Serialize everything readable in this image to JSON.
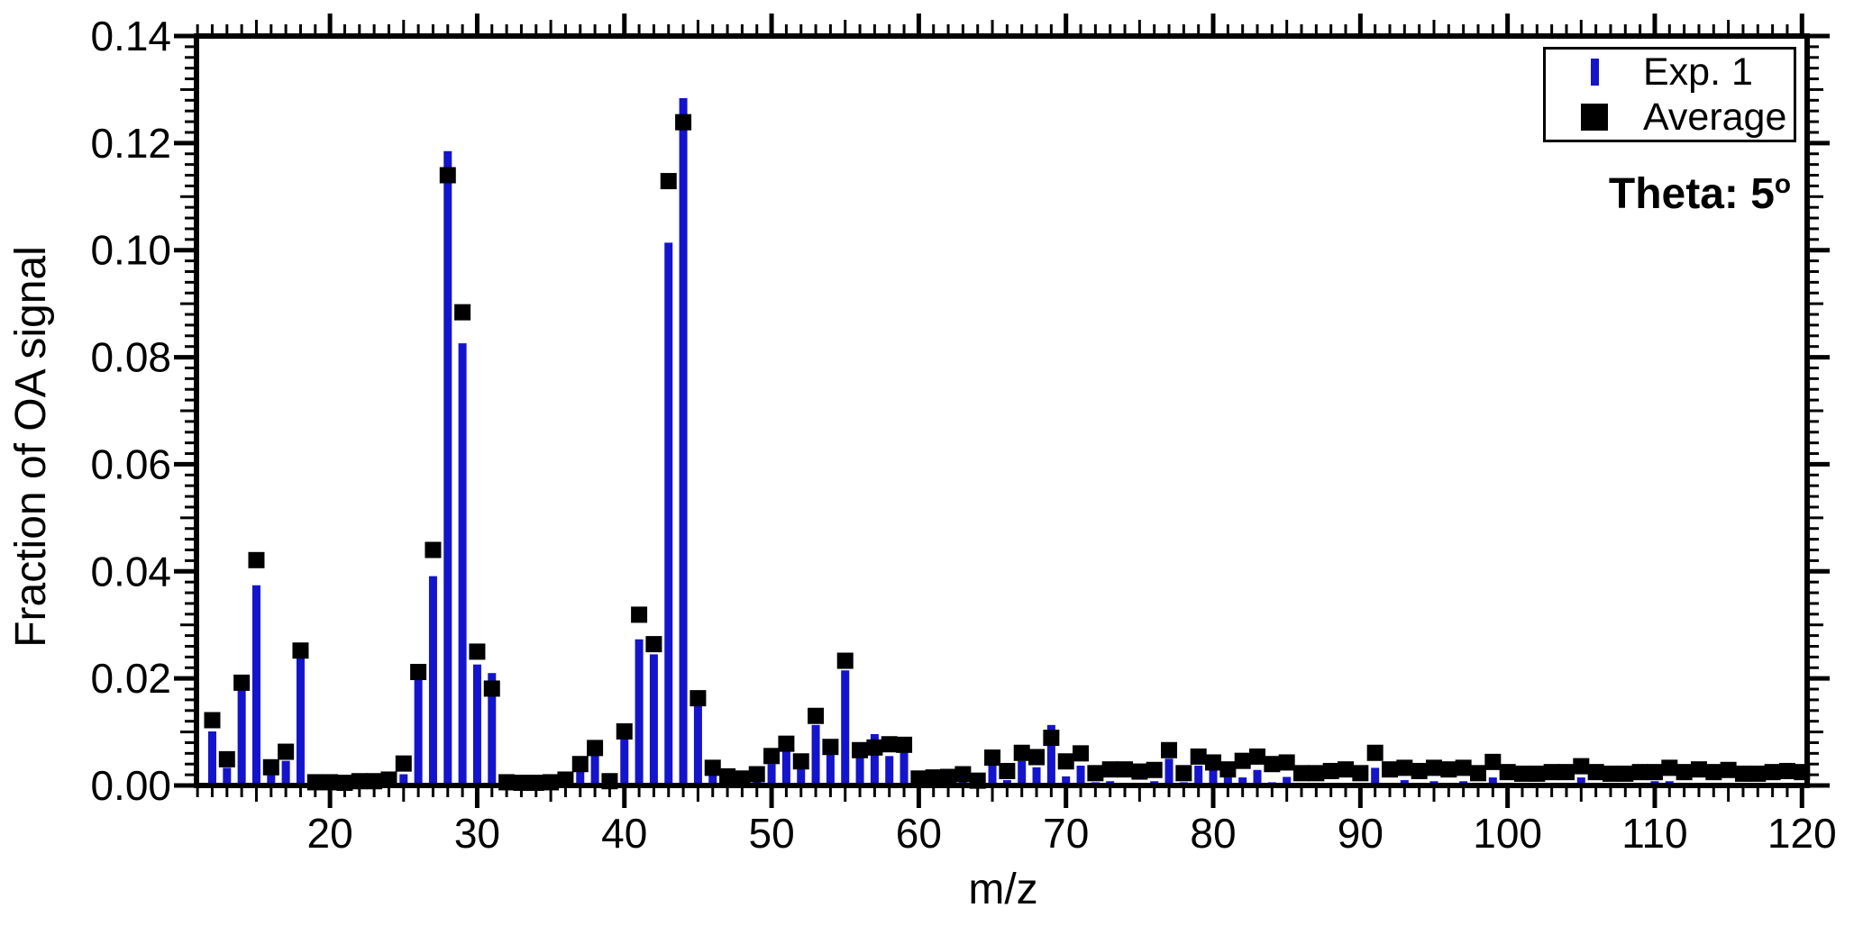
{
  "page": {
    "background": "#ffffff"
  },
  "chart_data": {
    "type": "bar",
    "title": "",
    "xlabel": "m/z",
    "ylabel": "Fraction of OA signal",
    "xlim": [
      10.93,
      120.35
    ],
    "ylim": [
      0,
      0.14
    ],
    "grid": false,
    "legend": {
      "position": "top-right",
      "entries": [
        {
          "marker": "blue-vertical-bar-icon",
          "label": "Exp. 1"
        },
        {
          "marker": "black-square-icon",
          "label": "Average"
        }
      ]
    },
    "annotation": {
      "text": "Theta: 5",
      "superscript": "o"
    },
    "colors": {
      "bar": "#1414cd",
      "marker": "#000000",
      "axis": "#000000"
    },
    "x_tick_labels": [
      "20",
      "30",
      "40",
      "50",
      "60",
      "70",
      "80",
      "90",
      "100",
      "110",
      "120"
    ],
    "y_tick_values": [
      0,
      0.02,
      0.04,
      0.06,
      0.08,
      0.1,
      0.12,
      0.14
    ],
    "y_tick_labels": [
      "0.00",
      "0.02",
      "0.04",
      "0.06",
      "0.08",
      "0.10",
      "0.12",
      "0.14"
    ],
    "x_minor_step": 1,
    "y_minor_step": 0.002,
    "x": [
      12,
      13,
      14,
      15,
      16,
      17,
      18,
      19,
      20,
      21,
      22,
      23,
      24,
      25,
      26,
      27,
      28,
      29,
      30,
      31,
      32,
      33,
      34,
      35,
      36,
      37,
      38,
      39,
      40,
      41,
      42,
      43,
      44,
      45,
      46,
      47,
      48,
      49,
      50,
      51,
      52,
      53,
      54,
      55,
      56,
      57,
      58,
      59,
      60,
      61,
      62,
      63,
      64,
      65,
      66,
      67,
      68,
      69,
      70,
      71,
      72,
      73,
      74,
      75,
      76,
      77,
      78,
      79,
      80,
      81,
      82,
      83,
      84,
      85,
      86,
      87,
      88,
      89,
      90,
      91,
      92,
      93,
      94,
      95,
      96,
      97,
      98,
      99,
      100,
      101,
      102,
      103,
      104,
      105,
      106,
      107,
      108,
      109,
      110,
      111,
      112,
      113,
      114,
      115,
      116,
      117,
      118,
      119,
      120
    ],
    "series": [
      {
        "name": "Exp. 1",
        "style": "bar",
        "values": [
          0.0101,
          0.0033,
          0.0179,
          0.0374,
          0.002,
          0.0046,
          0.0238,
          0.0003,
          0.0003,
          0.0003,
          0.0004,
          0.0004,
          0.0005,
          0.0021,
          0.0205,
          0.0391,
          0.1185,
          0.0826,
          0.0226,
          0.021,
          0.0004,
          0.0003,
          0.0003,
          0.0004,
          0.0006,
          0.003,
          0.0064,
          0.0005,
          0.0088,
          0.0273,
          0.0245,
          0.1014,
          0.1284,
          0.0155,
          0.0021,
          0.0006,
          0.0004,
          0.0014,
          0.004,
          0.0065,
          0.0034,
          0.0113,
          0.006,
          0.0215,
          0.0054,
          0.0096,
          0.0055,
          0.0062,
          0.0021,
          0.0004,
          0.0005,
          0.0015,
          0.0004,
          0.0037,
          0.001,
          0.0046,
          0.0034,
          0.0113,
          0.0017,
          0.0037,
          0.0006,
          0.0008,
          0.0005,
          0.0005,
          0.0008,
          0.005,
          0.0006,
          0.0037,
          0.0034,
          0.0015,
          0.0015,
          0.0029,
          0.0006,
          0.0016,
          0.0003,
          0.0003,
          0.0005,
          0.0005,
          0.0003,
          0.0033,
          0.0003,
          0.001,
          0.0005,
          0.0008,
          0.0003,
          0.0008,
          0.0003,
          0.0015,
          0.0005,
          0.0003,
          0.0003,
          0.0004,
          0.0004,
          0.0015,
          0.0004,
          0.0003,
          0.0003,
          0.0004,
          0.0008,
          0.0008,
          0.0003,
          0.0005,
          0.0004,
          0.0004,
          0.0003,
          0.0003,
          0.0004,
          0.0004,
          0.0003
        ]
      },
      {
        "name": "Average",
        "style": "scatter-square",
        "values": [
          0.0122,
          0.0049,
          0.0192,
          0.0421,
          0.0034,
          0.0063,
          0.0252,
          0.0006,
          0.0006,
          0.0005,
          0.0008,
          0.0008,
          0.0011,
          0.0041,
          0.0212,
          0.044,
          0.114,
          0.0884,
          0.025,
          0.0181,
          0.0006,
          0.0005,
          0.0005,
          0.0006,
          0.0011,
          0.004,
          0.007,
          0.0008,
          0.0101,
          0.0319,
          0.0264,
          0.1129,
          0.1239,
          0.0163,
          0.0033,
          0.0017,
          0.0013,
          0.0021,
          0.0055,
          0.0078,
          0.0045,
          0.013,
          0.0072,
          0.0233,
          0.0066,
          0.0071,
          0.0077,
          0.0076,
          0.0013,
          0.0015,
          0.0016,
          0.0021,
          0.0009,
          0.0052,
          0.0027,
          0.0061,
          0.0053,
          0.0089,
          0.0045,
          0.006,
          0.0023,
          0.003,
          0.003,
          0.0026,
          0.0029,
          0.0066,
          0.0023,
          0.0054,
          0.0043,
          0.003,
          0.0046,
          0.0054,
          0.004,
          0.0043,
          0.0023,
          0.0023,
          0.0027,
          0.003,
          0.0023,
          0.0061,
          0.003,
          0.0033,
          0.0027,
          0.0033,
          0.003,
          0.0033,
          0.0023,
          0.0044,
          0.0025,
          0.0022,
          0.0022,
          0.0025,
          0.0025,
          0.0036,
          0.0025,
          0.0022,
          0.0022,
          0.0025,
          0.0025,
          0.0033,
          0.0025,
          0.003,
          0.0025,
          0.0029,
          0.0022,
          0.0022,
          0.0025,
          0.0027,
          0.0025
        ]
      }
    ]
  }
}
